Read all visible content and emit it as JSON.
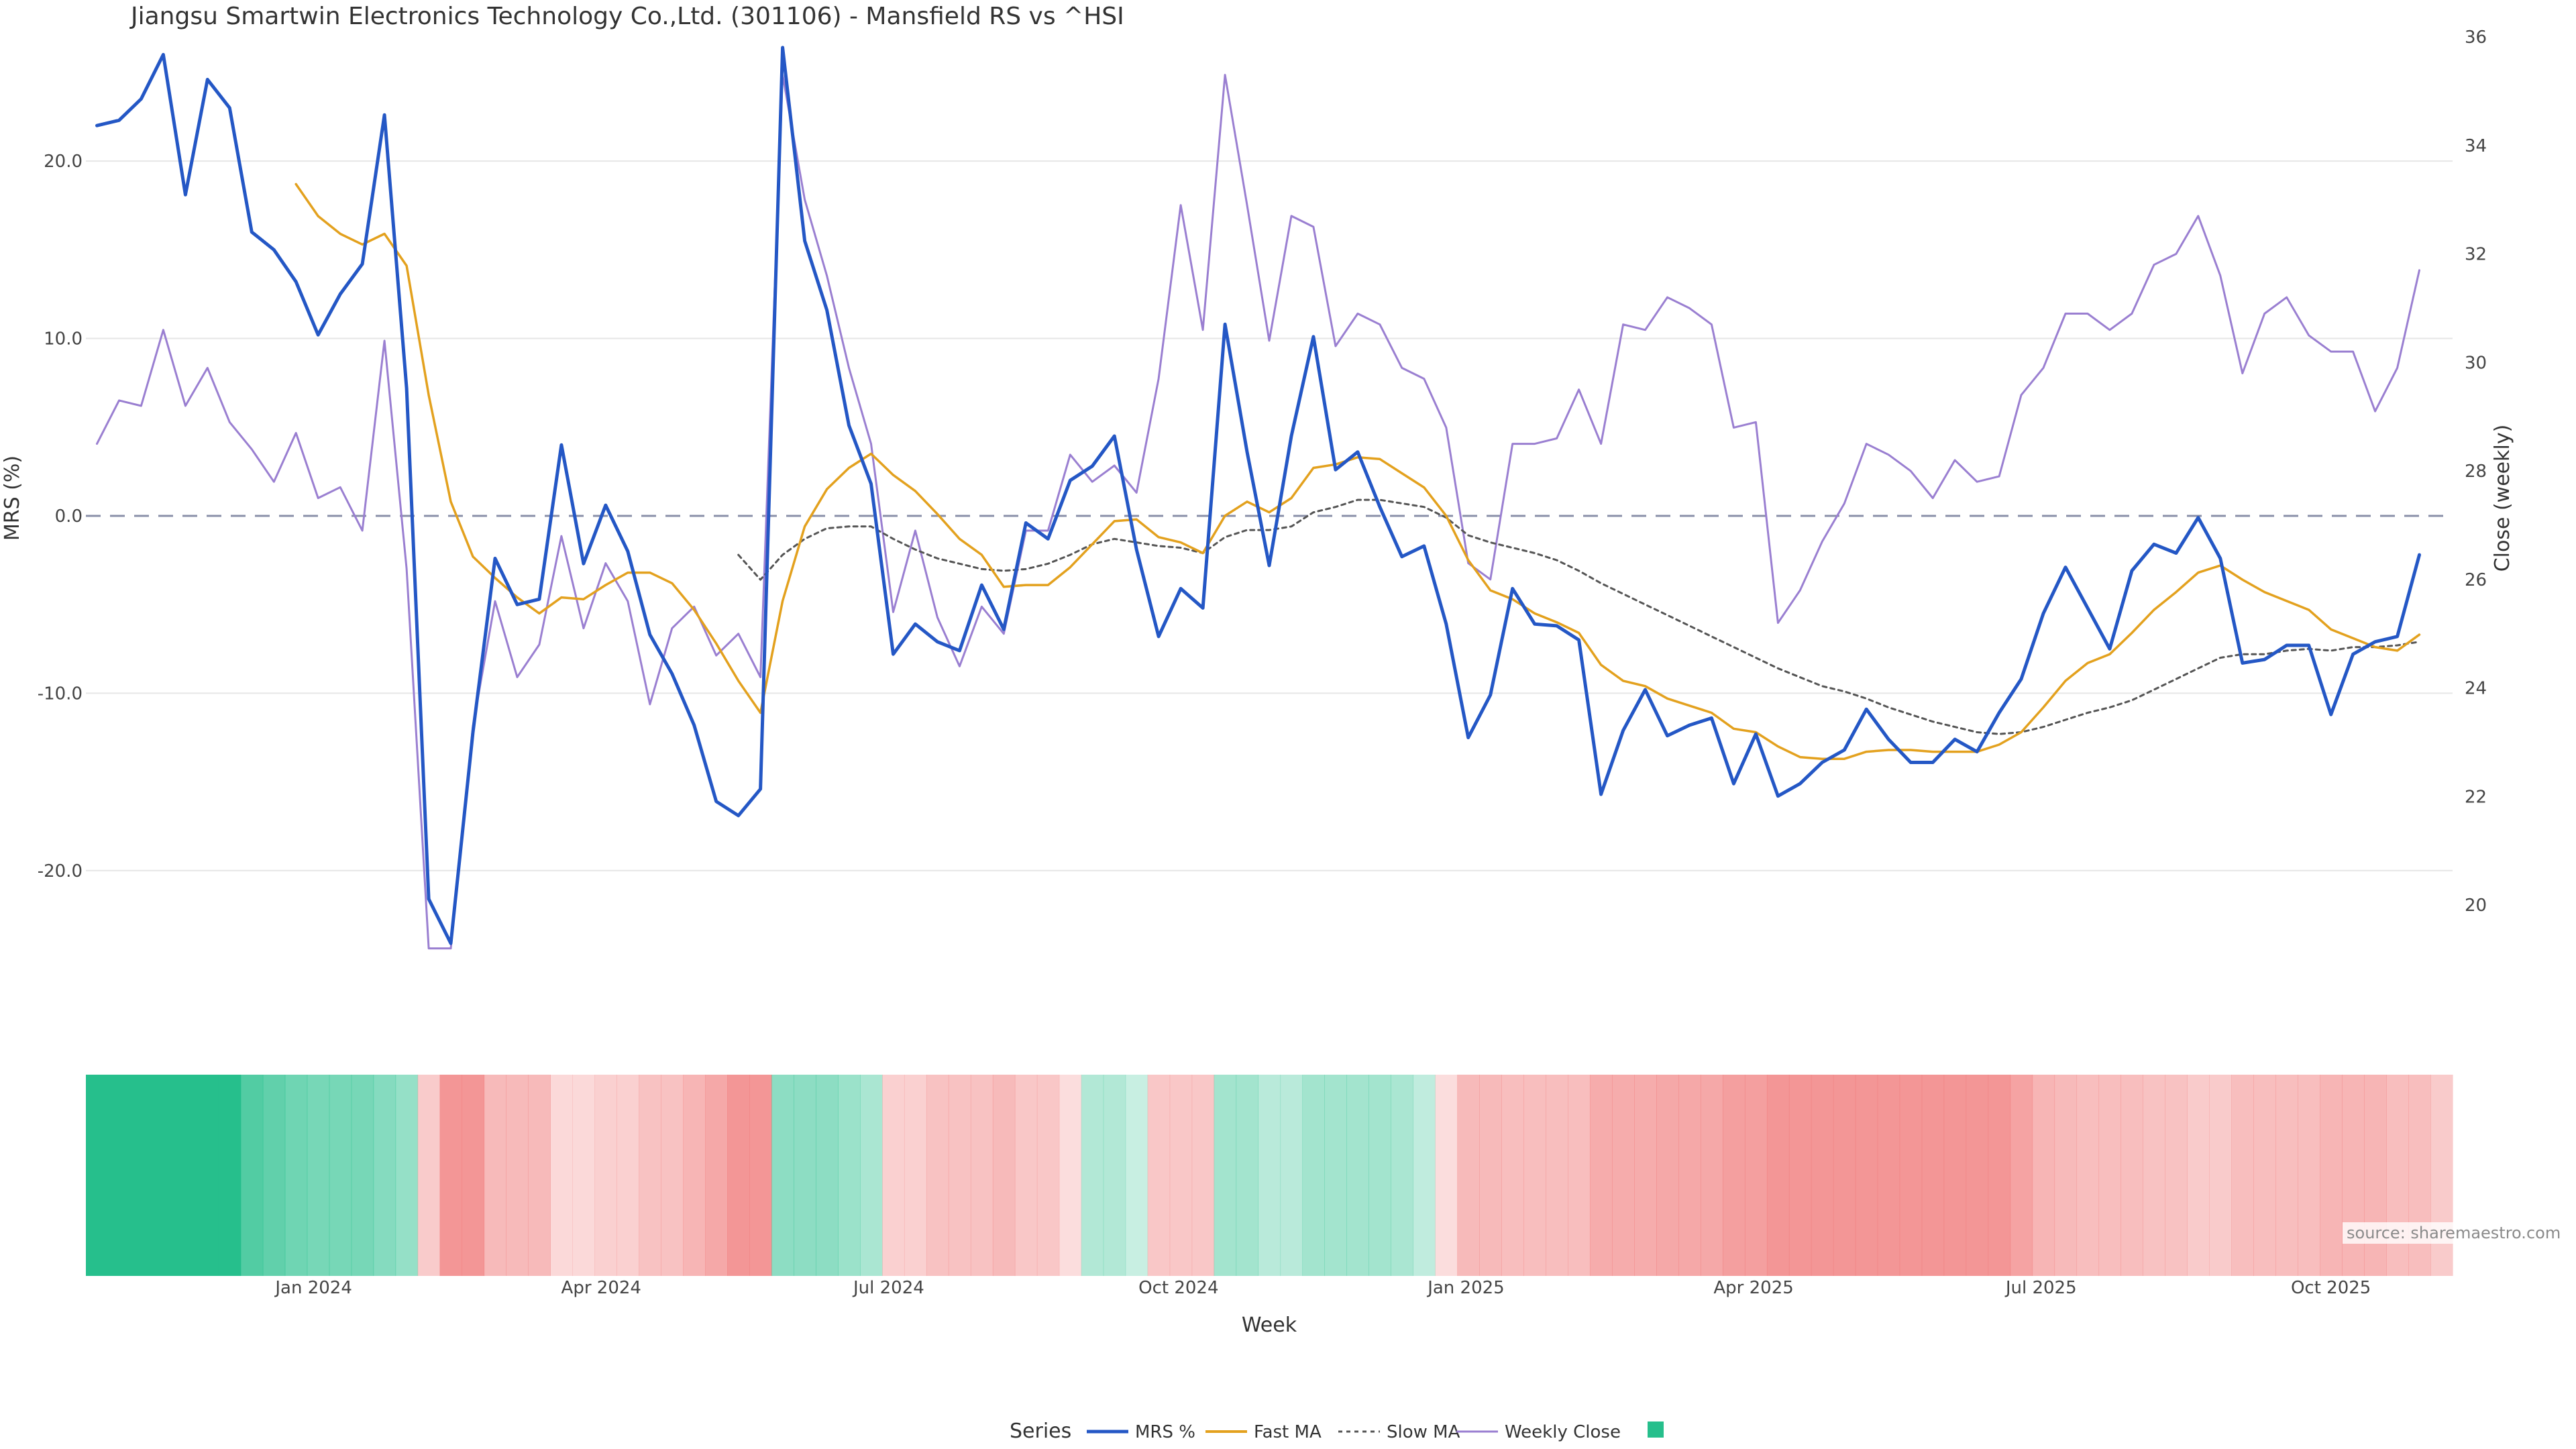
{
  "title": "Jiangsu Smartwin Electronics Technology Co.,Ltd. (301106) - Mansfield RS vs ^HSI",
  "source": "source: sharemaestro.com",
  "colors": {
    "mrs": "#2457c5",
    "fast": "#e3a11e",
    "slow": "#555555",
    "close": "#9a7fd1",
    "zero": "#8a8fa8",
    "grid": "#e6e6e6",
    "pos": "#26bf8c",
    "neg": "#f07b7b",
    "legend_swatch": "#26bf8c"
  },
  "chart_data": {
    "type": "line",
    "x_label": "Week",
    "y_left_label": "MRS (%)",
    "y_right_label": "Close (weekly)",
    "y_left_ticks": [
      "20.0",
      "10.0",
      "0.0",
      "-10.0",
      "-20.0"
    ],
    "y_left_tick_values": [
      20,
      10,
      0,
      -10,
      -20
    ],
    "y_left_range": [
      -25,
      27
    ],
    "y_right_ticks": [
      "36",
      "34",
      "32",
      "30",
      "28",
      "26",
      "24",
      "22",
      "20"
    ],
    "y_right_tick_values": [
      36,
      34,
      32,
      30,
      28,
      26,
      24,
      22,
      20
    ],
    "y_right_range": [
      19,
      36
    ],
    "x_tick_labels": [
      "Jan 2024",
      "Apr 2024",
      "Jul 2024",
      "Oct 2024",
      "Jan 2025",
      "Apr 2025",
      "Jul 2025",
      "Oct 2025"
    ],
    "x_tick_weeks": [
      9.8,
      22.8,
      35.8,
      48.9,
      61.9,
      74.9,
      87.9,
      101
    ],
    "weeks": 107,
    "series": [
      {
        "name": "MRS %",
        "values": [
          22,
          22.3,
          23.5,
          26,
          18.1,
          24.6,
          23,
          16,
          15,
          13.2,
          10.2,
          12.5,
          14.2,
          22.6,
          7.2,
          -21.6,
          -24.1,
          -12.2,
          -2.4,
          -5,
          -4.7,
          4,
          -2.7,
          0.6,
          -2,
          -6.7,
          -8.9,
          -11.8,
          -16.1,
          -16.9,
          -15.4,
          26.4,
          15.5,
          11.6,
          5.1,
          1.8,
          -7.8,
          -6.1,
          -7.1,
          -7.6,
          -3.9,
          -6.4,
          -0.4,
          -1.3,
          2,
          2.8,
          4.5,
          -1.9,
          -6.8,
          -4.1,
          -5.2,
          10.8,
          3.6,
          -2.8,
          4.5,
          10.1,
          2.6,
          3.6,
          0.5,
          -2.3,
          -1.7,
          -6.1,
          -12.5,
          -10.1,
          -4.1,
          -6.1,
          -6.2,
          -7,
          -15.7,
          -12.1,
          -9.8,
          -12.4,
          -11.8,
          -11.4,
          -15.1,
          -12.3,
          -15.8,
          -15.1,
          -13.9,
          -13.2,
          -10.9,
          -12.6,
          -13.9,
          -13.9,
          -12.6,
          -13.3,
          -11.1,
          -9.2,
          -5.5,
          -2.9,
          -5.2,
          -7.5,
          -3.1,
          -1.6,
          -2.1,
          -0.1,
          -2.4,
          -8.3,
          -8.1,
          -7.3,
          -7.3,
          -11.2,
          -7.8,
          -7.1,
          -6.8,
          -2.2
        ]
      },
      {
        "name": "Fast MA",
        "values": [
          null,
          null,
          null,
          null,
          null,
          null,
          null,
          null,
          null,
          18.7,
          16.9,
          15.9,
          15.3,
          15.9,
          14.1,
          6.8,
          0.8,
          -2.3,
          -3.5,
          -4.6,
          -5.5,
          -4.6,
          -4.7,
          -3.9,
          -3.2,
          -3.2,
          -3.8,
          -5.3,
          -7.2,
          -9.3,
          -11.1,
          -4.8,
          -0.6,
          1.5,
          2.7,
          3.5,
          2.3,
          1.4,
          0.1,
          -1.3,
          -2.2,
          -4,
          -3.9,
          -3.9,
          -2.9,
          -1.6,
          -0.3,
          -0.2,
          -1.2,
          -1.5,
          -2.1,
          0,
          0.8,
          0.2,
          1,
          2.7,
          2.9,
          3.3,
          3.2,
          2.4,
          1.6,
          0,
          -2.5,
          -4.2,
          -4.7,
          -5.5,
          -6,
          -6.6,
          -8.4,
          -9.3,
          -9.6,
          -10.3,
          -10.7,
          -11.1,
          -12,
          -12.2,
          -13,
          -13.6,
          -13.7,
          -13.7,
          -13.3,
          -13.2,
          -13.2,
          -13.3,
          -13.3,
          -13.3,
          -12.9,
          -12.2,
          -10.8,
          -9.3,
          -8.3,
          -7.8,
          -6.6,
          -5.3,
          -4.3,
          -3.2,
          -2.8,
          -3.6,
          -4.3,
          -4.8,
          -5.3,
          -6.4,
          -6.9,
          -7.4,
          -7.6,
          -6.7
        ]
      },
      {
        "name": "Slow MA",
        "values": [
          null,
          null,
          null,
          null,
          null,
          null,
          null,
          null,
          null,
          null,
          null,
          null,
          null,
          null,
          null,
          null,
          null,
          null,
          null,
          null,
          null,
          null,
          null,
          null,
          null,
          null,
          null,
          null,
          null,
          -2.2,
          -3.6,
          -2.2,
          -1.3,
          -0.7,
          -0.6,
          -0.6,
          -1.3,
          -1.9,
          -2.4,
          -2.7,
          -3,
          -3.1,
          -3,
          -2.7,
          -2.2,
          -1.6,
          -1.3,
          -1.5,
          -1.7,
          -1.8,
          -2.1,
          -1.2,
          -0.8,
          -0.8,
          -0.6,
          0.2,
          0.5,
          0.9,
          0.9,
          0.7,
          0.5,
          -0.1,
          -1.1,
          -1.5,
          -1.8,
          -2.1,
          -2.5,
          -3.1,
          -3.8,
          -4.4,
          -5,
          -5.6,
          -6.2,
          -6.8,
          -7.4,
          -8,
          -8.6,
          -9.1,
          -9.6,
          -9.9,
          -10.3,
          -10.8,
          -11.2,
          -11.6,
          -11.9,
          -12.2,
          -12.3,
          -12.2,
          -11.9,
          -11.5,
          -11.1,
          -10.8,
          -10.4,
          -9.8,
          -9.2,
          -8.6,
          -8,
          -7.8,
          -7.8,
          -7.6,
          -7.5,
          -7.6,
          -7.4,
          -7.4,
          -7.3,
          -7.1
        ]
      },
      {
        "name": "Weekly Close",
        "values": [
          28.5,
          29.3,
          29.2,
          30.6,
          29.2,
          29.9,
          28.9,
          28.4,
          27.8,
          28.7,
          27.5,
          27.7,
          26.9,
          30.4,
          26.2,
          19.2,
          19.2,
          23.3,
          25.6,
          24.2,
          24.8,
          26.8,
          25.1,
          26.3,
          25.6,
          23.7,
          25.1,
          25.5,
          24.6,
          25,
          24.2,
          35.3,
          33,
          31.6,
          29.9,
          28.5,
          25.4,
          26.9,
          25.3,
          24.4,
          25.5,
          25,
          26.9,
          26.9,
          28.3,
          27.8,
          28.1,
          27.6,
          29.7,
          32.9,
          30.6,
          35.3,
          32.9,
          30.4,
          32.7,
          32.5,
          30.3,
          30.9,
          30.7,
          29.9,
          29.7,
          28.8,
          26.3,
          26,
          28.5,
          28.5,
          28.6,
          29.5,
          28.5,
          30.7,
          30.6,
          31.2,
          31,
          30.7,
          28.8,
          28.9,
          25.2,
          25.8,
          26.7,
          27.4,
          28.5,
          28.3,
          28,
          27.5,
          28.2,
          27.8,
          27.9,
          29.4,
          29.9,
          30.9,
          30.9,
          30.6,
          30.9,
          31.8,
          32,
          32.7,
          31.6,
          29.8,
          30.9,
          31.2,
          30.5,
          30.2,
          30.2,
          29.1,
          29.9,
          31.7
        ]
      },
      {
        "name": "",
        "values": []
      }
    ],
    "heat_values": [
      26,
      26,
      26,
      26,
      26,
      26,
      26,
      20,
      18,
      16,
      15,
      15,
      15,
      13,
      11,
      -8,
      -20,
      -20,
      -12,
      -12,
      -12,
      -5,
      -5,
      -7,
      -7,
      -10,
      -10,
      -13,
      -16,
      -20,
      -20,
      12,
      12,
      12,
      10,
      8,
      -7,
      -7,
      -10,
      -10,
      -10,
      -12,
      -9,
      -9,
      -4,
      7,
      7,
      4,
      -9,
      -9,
      -9,
      9,
      9,
      6,
      6,
      9,
      9,
      9,
      9,
      8,
      5,
      -4,
      -12,
      -12,
      -11,
      -11,
      -11,
      -11,
      -15,
      -15,
      -15,
      -16,
      -16,
      -16,
      -18,
      -18,
      -20,
      -20,
      -20,
      -20,
      -20,
      -20,
      -20,
      -20,
      -20,
      -20,
      -20,
      -17,
      -13,
      -12,
      -11,
      -11,
      -11,
      -10,
      -10,
      -8,
      -8,
      -11,
      -11,
      -11,
      -11,
      -13,
      -13,
      -13,
      -11,
      -11,
      -8
    ]
  },
  "legend": {
    "title": "Series",
    "items": [
      "MRS %",
      "Fast MA",
      "Slow MA",
      "Weekly Close",
      ""
    ]
  }
}
